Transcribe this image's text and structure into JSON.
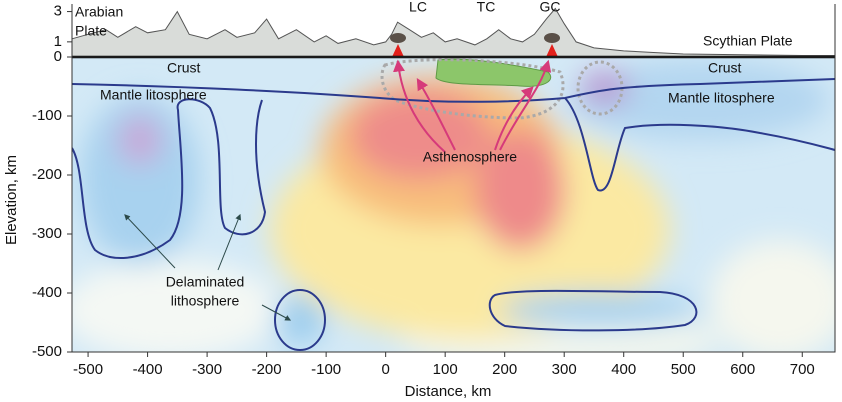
{
  "chart_data": {
    "type": "cross-section",
    "x_label": "Distance, km",
    "y_label": "Elevation, km",
    "xlim": [
      -527,
      755
    ],
    "ylim": [
      -500,
      0
    ],
    "xticks": [
      -500,
      -400,
      -300,
      -200,
      -100,
      0,
      100,
      200,
      300,
      400,
      500,
      600,
      700
    ],
    "yticks": [
      0,
      -100,
      -200,
      -300,
      -400,
      -500
    ],
    "topography": {
      "ylim": [
        0,
        3.5
      ],
      "yticks": [
        1,
        3
      ],
      "color": "#d9dcd9",
      "x": [
        -527,
        -500,
        -470,
        -450,
        -420,
        -400,
        -370,
        -350,
        -330,
        -300,
        -270,
        -250,
        -220,
        -200,
        -180,
        -150,
        -120,
        -100,
        -80,
        -50,
        -20,
        0,
        10,
        20,
        40,
        60,
        80,
        100,
        120,
        150,
        170,
        190,
        210,
        230,
        250,
        270,
        285,
        300,
        320,
        350,
        400,
        450,
        500,
        600,
        700,
        755
      ],
      "values": [
        1.2,
        1.5,
        1.8,
        1.3,
        2.0,
        1.6,
        1.8,
        3.0,
        1.5,
        1.2,
        1.8,
        1.3,
        1.6,
        2.5,
        1.2,
        1.8,
        1.0,
        1.4,
        0.9,
        1.2,
        0.8,
        1.0,
        1.5,
        2.3,
        1.8,
        1.3,
        1.6,
        1.0,
        1.2,
        0.8,
        1.2,
        1.8,
        1.2,
        1.0,
        1.5,
        2.5,
        3.2,
        2.2,
        1.0,
        0.6,
        0.4,
        0.3,
        0.2,
        0.15,
        0.1,
        0.1
      ]
    },
    "annotations": [
      "Arabian",
      "Plate",
      "LC",
      "TC",
      "GC",
      "Scythian Plate",
      "Crust",
      "Crust",
      "Mantle litosphere",
      "Mantle litosphere",
      "Asthenosphere",
      "Delaminated",
      "lithosphere"
    ]
  }
}
